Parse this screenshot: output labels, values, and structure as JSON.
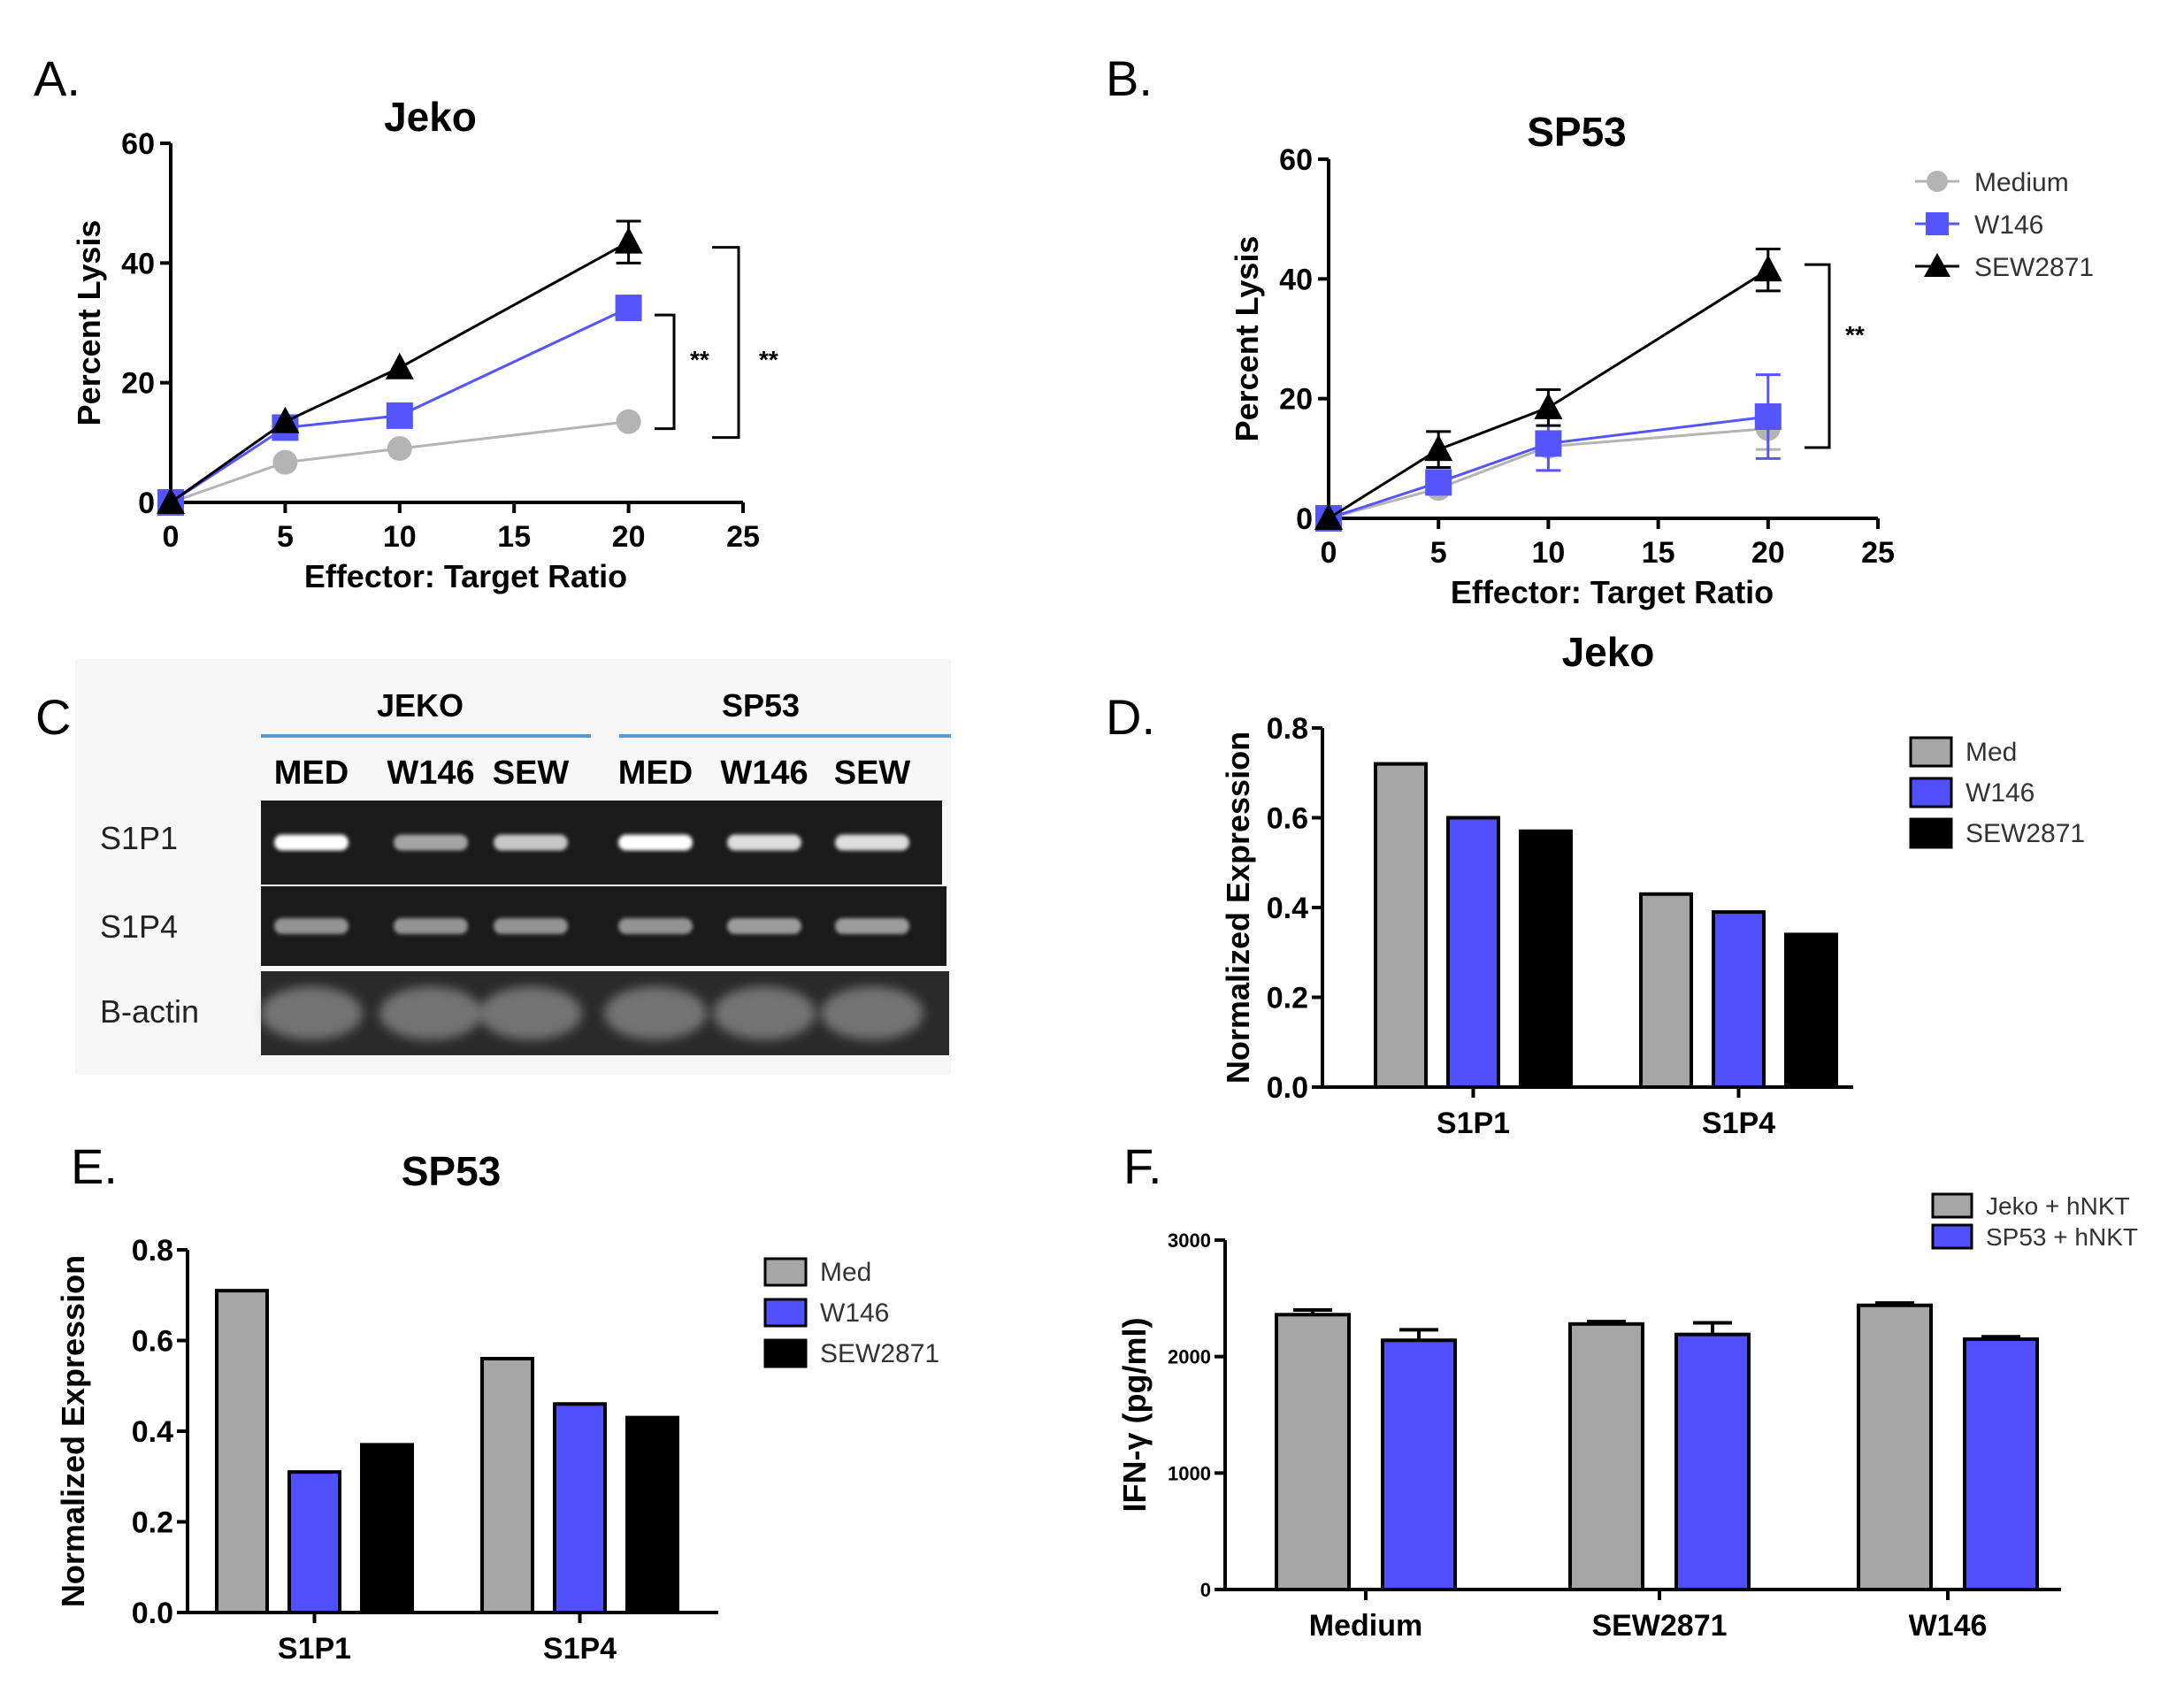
{
  "colors": {
    "medium": "#b4b4b4",
    "w146": "#5555ff",
    "sew": "#000000",
    "gray_bar": "#a6a6a6",
    "blue_bar": "#5050ff",
    "gel_line": "#5b9bd5"
  },
  "panel_a": {
    "letter": "A.",
    "chart_data": {
      "type": "line",
      "title": "Jeko",
      "xlabel": "Effector: Target Ratio",
      "ylabel": "Percent Lysis",
      "xlim": [
        0,
        25
      ],
      "ylim": [
        0,
        60
      ],
      "xticks": [
        "0",
        "5",
        "10",
        "15",
        "20",
        "25"
      ],
      "yticks": [
        "0",
        "20",
        "40",
        "60"
      ],
      "x": [
        0,
        5,
        10,
        20
      ],
      "series": [
        {
          "name": "Medium",
          "values": [
            0,
            6.7,
            9,
            13.5
          ],
          "err": [
            0,
            0,
            0,
            0
          ]
        },
        {
          "name": "W146",
          "values": [
            0,
            12.5,
            14.5,
            32.5
          ],
          "err": [
            0,
            0,
            0,
            0
          ]
        },
        {
          "name": "SEW2871",
          "values": [
            0,
            13.5,
            22.5,
            43.5
          ],
          "err": [
            0,
            0,
            0,
            3.5
          ]
        }
      ],
      "annotations": [
        "**",
        "**"
      ]
    }
  },
  "panel_b": {
    "letter": "B.",
    "chart_data": {
      "type": "line",
      "title": "SP53",
      "xlabel": "Effector: Target Ratio",
      "ylabel": "Percent Lysis",
      "xlim": [
        0,
        25
      ],
      "ylim": [
        0,
        60
      ],
      "xticks": [
        "0",
        "5",
        "10",
        "15",
        "20",
        "25"
      ],
      "yticks": [
        "0",
        "20",
        "40",
        "60"
      ],
      "x": [
        0,
        5,
        10,
        20
      ],
      "series": [
        {
          "name": "Medium",
          "values": [
            0,
            5,
            12,
            15
          ],
          "err": [
            0,
            0,
            0,
            3.5
          ]
        },
        {
          "name": "W146",
          "values": [
            0,
            6,
            12.5,
            17
          ],
          "err": [
            0,
            0,
            4.5,
            7
          ]
        },
        {
          "name": "SEW2871",
          "values": [
            0,
            11.5,
            18.5,
            41.5
          ],
          "err": [
            0,
            3,
            3,
            3.5
          ]
        }
      ],
      "legend": [
        "Medium",
        "W146",
        "SEW2871"
      ],
      "annotations": [
        "**"
      ]
    }
  },
  "panel_c": {
    "letter": "C",
    "groups": [
      "JEKO",
      "SP53"
    ],
    "lanes": [
      "MED",
      "W146",
      "SEW",
      "MED",
      "W146",
      "SEW"
    ],
    "rows": [
      "S1P1",
      "S1P4",
      "B-actin"
    ],
    "band_intensity": [
      [
        1.0,
        0.6,
        0.75,
        1.0,
        0.85,
        0.85
      ],
      [
        0.7,
        0.7,
        0.7,
        0.7,
        0.75,
        0.75
      ],
      [
        0.5,
        0.5,
        0.5,
        0.5,
        0.5,
        0.5
      ]
    ]
  },
  "panel_d": {
    "letter": "D.",
    "chart_data": {
      "type": "bar",
      "title": "Jeko",
      "ylabel": "Normalized Expression",
      "ylim": [
        0,
        0.8
      ],
      "yticks": [
        "0.0",
        "0.2",
        "0.4",
        "0.6",
        "0.8"
      ],
      "categories": [
        "S1P1",
        "S1P4"
      ],
      "series": [
        {
          "name": "Med",
          "values": [
            0.72,
            0.43
          ]
        },
        {
          "name": "W146",
          "values": [
            0.6,
            0.39
          ]
        },
        {
          "name": "SEW2871",
          "values": [
            0.57,
            0.34
          ]
        }
      ]
    }
  },
  "panel_e": {
    "letter": "E.",
    "chart_data": {
      "type": "bar",
      "title": "SP53",
      "ylabel": "Normalized Expression",
      "ylim": [
        0,
        0.8
      ],
      "yticks": [
        "0.0",
        "0.2",
        "0.4",
        "0.6",
        "0.8"
      ],
      "categories": [
        "S1P1",
        "S1P4"
      ],
      "series": [
        {
          "name": "Med",
          "values": [
            0.71,
            0.56
          ]
        },
        {
          "name": "W146",
          "values": [
            0.31,
            0.46
          ]
        },
        {
          "name": "SEW2871",
          "values": [
            0.37,
            0.43
          ]
        }
      ]
    }
  },
  "panel_f": {
    "letter": "F.",
    "chart_data": {
      "type": "bar",
      "title": "",
      "ylabel": "IFN-γ (pg/ml)",
      "ylim": [
        0,
        3000
      ],
      "yticks": [
        "0",
        "1000",
        "2000",
        "3000"
      ],
      "categories": [
        "Medium",
        "SEW2871",
        "W146"
      ],
      "series": [
        {
          "name": "Jeko + hNKT",
          "values": [
            2360,
            2280,
            2440
          ],
          "err": [
            40,
            20,
            20
          ]
        },
        {
          "name": "SP53 + hNKT",
          "values": [
            2140,
            2190,
            2150
          ],
          "err": [
            90,
            100,
            20
          ]
        }
      ]
    }
  }
}
